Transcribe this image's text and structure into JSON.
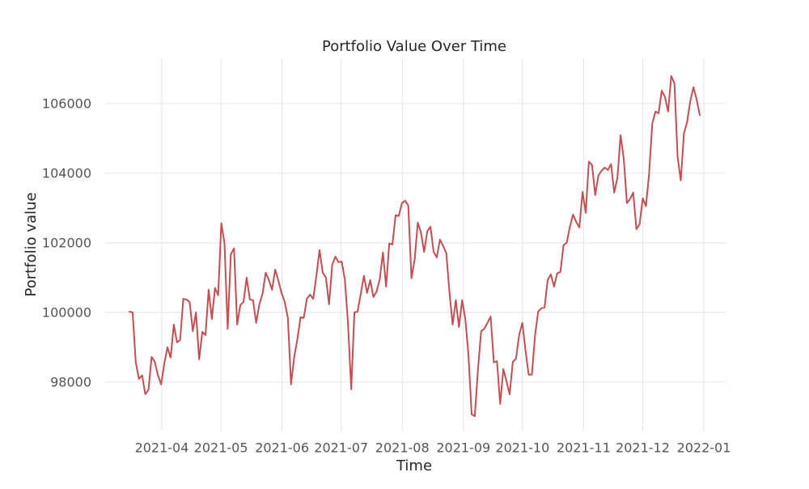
{
  "chart_data": {
    "type": "line",
    "title": "Portfolio Value Over Time",
    "xlabel": "Time",
    "ylabel": "Portfolio value",
    "xticks": [
      "2021-04",
      "2021-05",
      "2021-06",
      "2021-07",
      "2021-08",
      "2021-09",
      "2021-10",
      "2021-11",
      "2021-12",
      "2022-01"
    ],
    "ylim": [
      96600,
      107300
    ],
    "yticks": [
      98000,
      100000,
      102000,
      104000,
      106000
    ],
    "grid": true,
    "series": [
      {
        "name": "Portfolio value",
        "color": "#c44e52",
        "values": [
          100020,
          100000,
          98560,
          98090,
          98190,
          97650,
          97770,
          98720,
          98580,
          98190,
          97930,
          98530,
          99000,
          98700,
          99650,
          99140,
          99210,
          100390,
          100370,
          100300,
          99460,
          100000,
          98650,
          99440,
          99350,
          100650,
          99810,
          100700,
          100490,
          102560,
          101980,
          99530,
          101670,
          101840,
          99650,
          100210,
          100300,
          101000,
          100370,
          100350,
          99700,
          100230,
          100530,
          101140,
          100930,
          100650,
          101230,
          100910,
          100560,
          100300,
          99840,
          97930,
          98720,
          99230,
          99860,
          99840,
          100390,
          100510,
          100390,
          101050,
          101790,
          101140,
          101000,
          100230,
          101370,
          101600,
          101440,
          101460,
          100930,
          99650,
          97790,
          100000,
          100020,
          100530,
          101050,
          100560,
          100930,
          100440,
          100600,
          100950,
          101720,
          100740,
          101980,
          101950,
          102790,
          102770,
          103140,
          103210,
          103070,
          100980,
          101510,
          102580,
          102300,
          101740,
          102330,
          102460,
          101740,
          101580,
          102090,
          101910,
          101700,
          100580,
          99650,
          100350,
          99580,
          100350,
          99810,
          98770,
          97070,
          97020,
          98370,
          99460,
          99530,
          99700,
          99880,
          98560,
          98600,
          97370,
          98370,
          98020,
          97650,
          98580,
          98670,
          99350,
          99700,
          98910,
          98210,
          98210,
          99330,
          100020,
          100120,
          100140,
          100930,
          101090,
          100740,
          101120,
          101160,
          101930,
          102000,
          102460,
          102810,
          102600,
          102440,
          103460,
          102860,
          104330,
          104230,
          103370,
          103930,
          104070,
          104160,
          104090,
          104260,
          103440,
          103860,
          105090,
          104420,
          103140,
          103260,
          103440,
          102390,
          102530,
          103280,
          103050,
          103980,
          105420,
          105770,
          105720,
          106370,
          106190,
          105770,
          106790,
          106580,
          104470,
          103790,
          105140,
          105470,
          106070,
          106470,
          106120,
          105670
        ]
      }
    ]
  }
}
